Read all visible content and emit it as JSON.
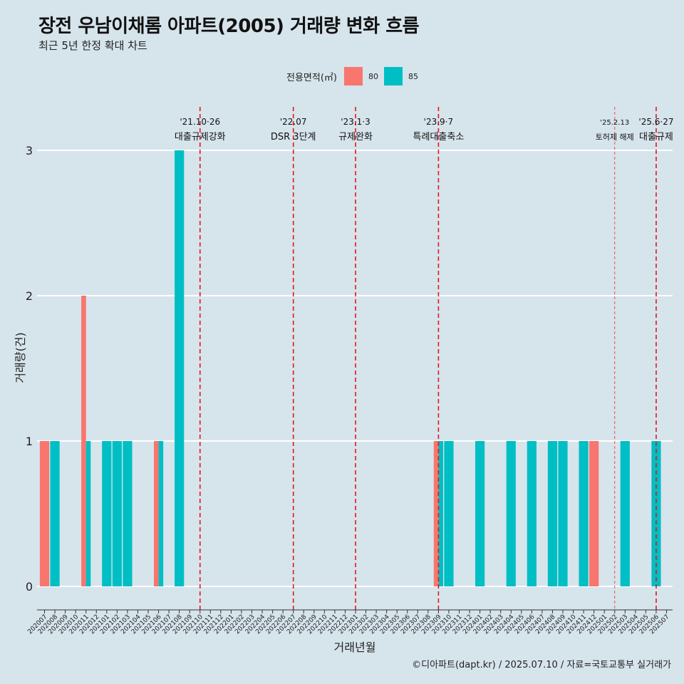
{
  "chart_data": {
    "type": "bar",
    "title": "장전 우남이채롬 아파트(2005) 거래량 변화 흐름",
    "subtitle": "최근 5년 한정 확대 차트",
    "xlabel": "거래년월",
    "ylabel": "거래량(건)",
    "ylim": [
      0,
      3
    ],
    "yticks": [
      "0",
      "1",
      "2",
      "3"
    ],
    "legend": {
      "title": "전용면적(㎡)",
      "position": "top",
      "entries": [
        {
          "name": "80",
          "color": "#f8766d"
        },
        {
          "name": "85",
          "color": "#00bfc4"
        }
      ]
    },
    "categories": [
      "202007",
      "202008",
      "202009",
      "202010",
      "202011",
      "202012",
      "202101",
      "202102",
      "202103",
      "202104",
      "202105",
      "202106",
      "202107",
      "202108",
      "202109",
      "202110",
      "202111",
      "202112",
      "202201",
      "202202",
      "202203",
      "202204",
      "202205",
      "202206",
      "202207",
      "202208",
      "202209",
      "202210",
      "202211",
      "202212",
      "202301",
      "202302",
      "202303",
      "202304",
      "202305",
      "202306",
      "202307",
      "202308",
      "202309",
      "202310",
      "202311",
      "202312",
      "202401",
      "202402",
      "202403",
      "202404",
      "202405",
      "202406",
      "202407",
      "202408",
      "202409",
      "202410",
      "202411",
      "202412",
      "202501",
      "202502",
      "202503",
      "202504",
      "202505",
      "202506",
      "202507"
    ],
    "series": [
      {
        "name": "80",
        "color": "#f8766d",
        "values": [
          1,
          0,
          0,
          0,
          2,
          0,
          0,
          0,
          0,
          0,
          0,
          1,
          0,
          0,
          0,
          0,
          0,
          0,
          0,
          0,
          0,
          0,
          0,
          0,
          0,
          0,
          0,
          0,
          0,
          0,
          0,
          0,
          0,
          0,
          0,
          0,
          0,
          0,
          1,
          0,
          0,
          0,
          0,
          0,
          0,
          0,
          0,
          0,
          0,
          0,
          0,
          0,
          0,
          1,
          0,
          0,
          0,
          0,
          0,
          0,
          0
        ]
      },
      {
        "name": "85",
        "color": "#00bfc4",
        "values": [
          0,
          1,
          0,
          0,
          1,
          0,
          1,
          1,
          1,
          0,
          0,
          1,
          0,
          3,
          0,
          0,
          0,
          0,
          0,
          0,
          0,
          0,
          0,
          0,
          0,
          0,
          0,
          0,
          0,
          0,
          0,
          0,
          0,
          0,
          0,
          0,
          0,
          0,
          1,
          1,
          0,
          0,
          1,
          0,
          0,
          1,
          0,
          1,
          0,
          1,
          1,
          0,
          1,
          0,
          0,
          0,
          1,
          0,
          0,
          1,
          0
        ]
      }
    ],
    "annotations": [
      {
        "date": "'21.10·26",
        "label": "대출규제강화",
        "at": "202110",
        "style": "bold"
      },
      {
        "date": "'22.07",
        "label": "DSR 3단계",
        "at": "202207",
        "style": "bold"
      },
      {
        "date": "'23.1·3",
        "label": "규제완화",
        "at": "202301",
        "style": "bold"
      },
      {
        "date": "'23.9·7",
        "label": "특례대출축소",
        "at": "202309",
        "style": "bold"
      },
      {
        "date": "'25.2.13",
        "label": "토허제 해제",
        "at": "202502",
        "style": "thin"
      },
      {
        "date": "'25.6·27",
        "label": "대출규제",
        "at": "202506",
        "style": "bold"
      }
    ],
    "grid": true
  },
  "caption": "©디아파트(dapt.kr) / 2025.07.10 / 자료=국토교통부 실거래가"
}
